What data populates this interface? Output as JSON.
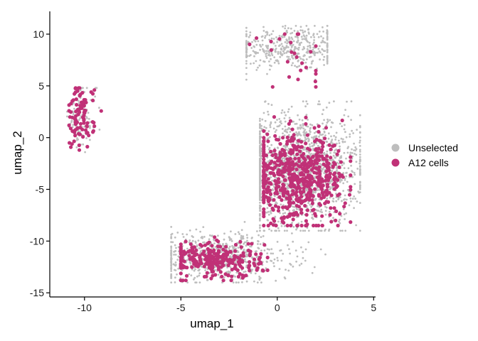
{
  "chart_data": {
    "type": "scatter",
    "xlabel": "umap_1",
    "ylabel": "umap_2",
    "xlim": [
      -11.8,
      5.1
    ],
    "ylim": [
      -15.4,
      12.2
    ],
    "xticks": [
      -10,
      -5,
      0,
      5
    ],
    "yticks": [
      10,
      5,
      0,
      -5,
      -10,
      -15
    ],
    "grid": false,
    "legend_position": "right",
    "series": [
      {
        "name": "Unselected",
        "color": "#bebebe",
        "approx_count": 4500,
        "clusters": [
          {
            "cx": 0.6,
            "cy": 8.7,
            "sx": 1.5,
            "sy": 1.1,
            "n": 420,
            "x": [
              -1.6,
              2.6
            ],
            "y": [
              5.6,
              10.8
            ]
          },
          {
            "cx": 1.2,
            "cy": -3.0,
            "sx": 1.6,
            "sy": 2.6,
            "n": 1600,
            "x": [
              -0.9,
              4.3
            ],
            "y": [
              -9.0,
              3.5
            ]
          },
          {
            "cx": -3.0,
            "cy": -11.5,
            "sx": 1.9,
            "sy": 1.2,
            "n": 650,
            "x": [
              -5.5,
              2.5
            ],
            "y": [
              -14.0,
              -7.0
            ]
          },
          {
            "cx": -10.2,
            "cy": 2.0,
            "sx": 0.4,
            "sy": 1.7,
            "n": 110,
            "x": [
              -10.9,
              -8.9
            ],
            "y": [
              -1.4,
              4.8
            ]
          }
        ]
      },
      {
        "name": "A12 cells",
        "color": "#c03177",
        "approx_count": 1100,
        "clusters": [
          {
            "cx": 1.0,
            "cy": -4.0,
            "sx": 1.3,
            "sy": 2.0,
            "n": 620,
            "x": [
              -0.7,
              3.8
            ],
            "y": [
              -8.5,
              2.5
            ]
          },
          {
            "cx": -3.2,
            "cy": -11.8,
            "sx": 1.2,
            "sy": 0.9,
            "n": 260,
            "x": [
              -5.0,
              -0.5
            ],
            "y": [
              -13.8,
              -9.0
            ]
          },
          {
            "cx": -10.2,
            "cy": 2.0,
            "sx": 0.35,
            "sy": 1.6,
            "n": 95,
            "x": [
              -10.8,
              -8.9
            ],
            "y": [
              -1.2,
              4.8
            ]
          },
          {
            "cx": 1.0,
            "cy": 7.5,
            "sx": 1.2,
            "sy": 1.8,
            "n": 25,
            "x": [
              -2.2,
              2.0
            ],
            "y": [
              4.9,
              10.0
            ]
          }
        ]
      }
    ]
  }
}
